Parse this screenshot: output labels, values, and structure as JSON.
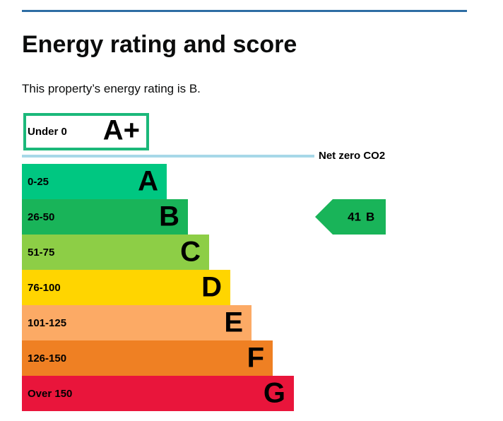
{
  "header": {
    "title": "Energy rating and score"
  },
  "summary": "This property’s energy rating is B.",
  "top_band": {
    "range": "Under 0",
    "letter": "A+",
    "color": "#1bb87a"
  },
  "net_zero_label": "Net zero CO2",
  "bands": [
    {
      "range": "0-25",
      "letter": "A",
      "color": "#00c781"
    },
    {
      "range": "26-50",
      "letter": "B",
      "color": "#19b459"
    },
    {
      "range": "51-75",
      "letter": "C",
      "color": "#8dce46"
    },
    {
      "range": "76-100",
      "letter": "D",
      "color": "#ffd500"
    },
    {
      "range": "101-125",
      "letter": "E",
      "color": "#fcaa65"
    },
    {
      "range": "126-150",
      "letter": "F",
      "color": "#ef8023"
    },
    {
      "range": "Over 150",
      "letter": "G",
      "color": "#e9153b"
    }
  ],
  "current": {
    "score": 41,
    "letter": "B",
    "color": "#19b459"
  }
}
